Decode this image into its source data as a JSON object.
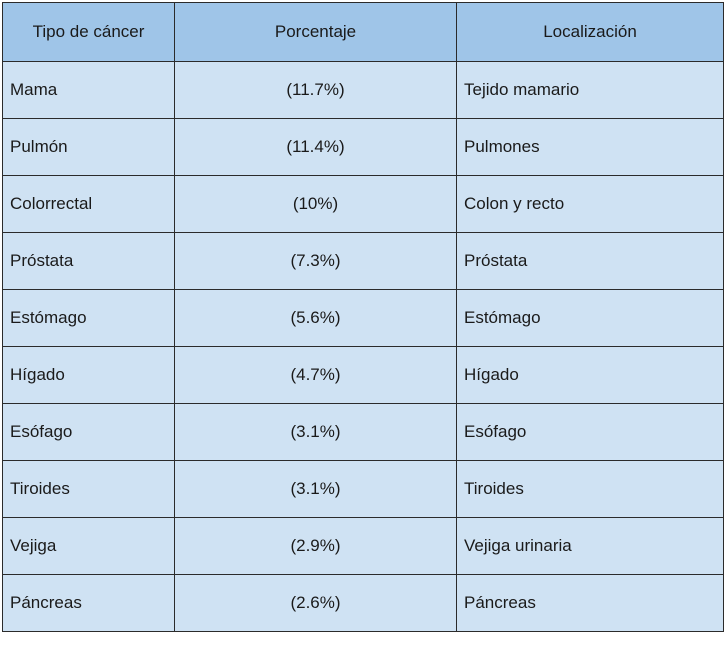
{
  "table": {
    "headers": [
      "Tipo de cáncer",
      "Porcentaje",
      "Localización"
    ],
    "rows": [
      [
        "Mama",
        "(11.7%)",
        "Tejido mamario"
      ],
      [
        "Pulmón",
        "(11.4%)",
        "Pulmones"
      ],
      [
        "Colorrectal",
        "(10%)",
        "Colon y recto"
      ],
      [
        "Próstata",
        "(7.3%)",
        "Próstata"
      ],
      [
        "Estómago",
        "(5.6%)",
        "Estómago"
      ],
      [
        "Hígado",
        "(4.7%)",
        "Hígado"
      ],
      [
        "Esófago",
        "(3.1%)",
        "Esófago"
      ],
      [
        "Tiroides",
        "(3.1%)",
        "Tiroides"
      ],
      [
        "Vejiga",
        "(2.9%)",
        "Vejiga urinaria"
      ],
      [
        "Páncreas",
        "(2.6%)",
        "Páncreas"
      ]
    ],
    "colors": {
      "header_bg": "#9fc5e8",
      "cell_bg": "#cfe2f3",
      "border": "#2b2b2b"
    }
  }
}
